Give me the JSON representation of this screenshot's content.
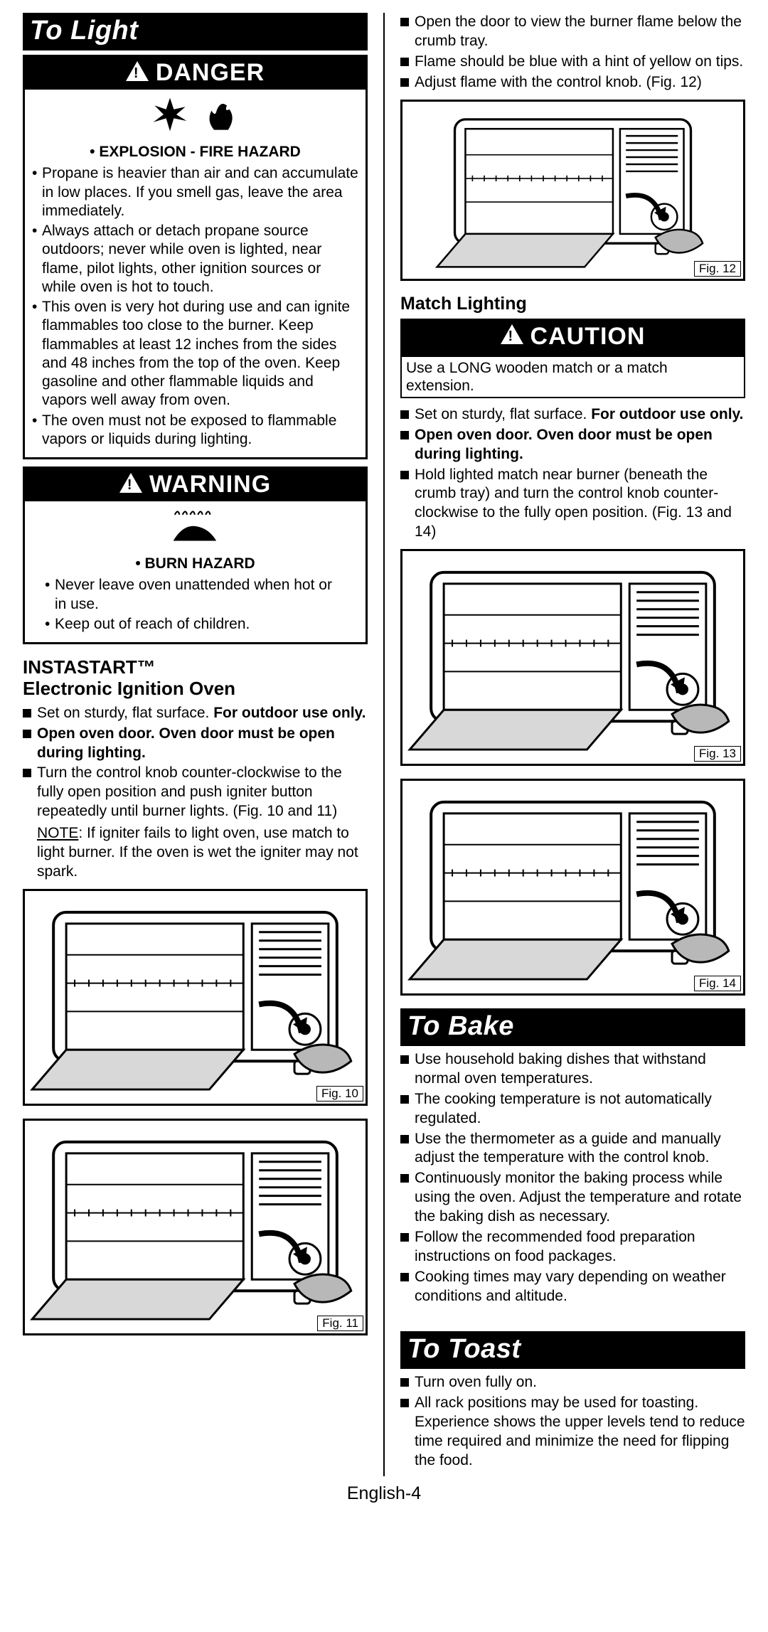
{
  "page_number": "English-4",
  "left": {
    "heading_to_light": "To Light",
    "danger": {
      "bar": "DANGER",
      "heading": "• Explosion - Fire Hazard",
      "items": [
        "Propane is heavier than air and can accumulate in low places. If you smell gas, leave the area immediately.",
        "Always attach or detach propane source outdoors; never while oven is lighted, near flame, pilot lights, other ignition sources or while oven is hot to touch.",
        "This oven is very hot during use and can ignite flammables too close to the burner. Keep flammables at least 12 inches from the sides and 48 inches from the top of the oven. Keep gasoline and other flammable liquids and vapors well away from oven.",
        "The oven must not be exposed to flammable vapors or liquids during lighting."
      ]
    },
    "warning": {
      "bar": "WARNING",
      "heading": "• Burn Hazard",
      "items": [
        "Never leave oven unattended when hot or in use.",
        "Keep out of reach of children."
      ]
    },
    "instastart_heading": "INSTASTART™\nElectronic Ignition Oven",
    "instastart_items_html": [
      "Set on sturdy, flat surface. <b>For outdoor use only.</b>",
      "<b>Open oven door.  Oven door must be open during lighting.</b>",
      "Turn the control knob counter-clockwise to the fully open position and push igniter button repeatedly until burner lights. (Fig. 10 and 11)"
    ],
    "instastart_note": "<span class='u'>NOTE</span>: If igniter fails to light oven, use match to light burner.  If the oven is wet the igniter may not spark.",
    "fig10": "Fig. 10",
    "fig11": "Fig. 11"
  },
  "right": {
    "top_items": [
      "Open the door to view the burner flame below the crumb tray.",
      "Flame should be blue with a hint of yellow on tips.",
      "Adjust flame with the control knob. (Fig. 12)"
    ],
    "fig12": "Fig. 12",
    "match_heading": "Match Lighting",
    "caution_bar": "CAUTION",
    "caution_note": "Use a LONG wooden match or a match extension.",
    "match_items_html": [
      "Set on sturdy, flat surface. <b>For outdoor use only.</b>",
      "<b>Open oven door.  Oven door must be open during lighting.</b>",
      "Hold lighted match near burner (beneath the crumb tray) and turn the control knob counter-clockwise to the fully open position. (Fig. 13 and 14)"
    ],
    "fig13": "Fig. 13",
    "fig14": "Fig. 14",
    "heading_to_bake": "To Bake",
    "bake_items": [
      "Use household baking dishes that withstand normal oven temperatures.",
      "The cooking temperature is not automatically regulated.",
      "Use the thermometer as a guide and manually adjust the temperature with the control knob.",
      "Continuously monitor the baking process while using the oven. Adjust the temperature and rotate the baking dish as necessary.",
      "Follow the recommended food preparation instructions on food packages.",
      "Cooking times may vary depending on weather conditions and altitude."
    ],
    "heading_to_toast": "To Toast",
    "toast_items": [
      "Turn oven fully on.",
      "All rack positions may be used for toasting. Experience shows the upper levels tend to reduce time required and minimize the need for flipping the food."
    ]
  },
  "colors": {
    "fg": "#000000",
    "bg": "#ffffff"
  }
}
